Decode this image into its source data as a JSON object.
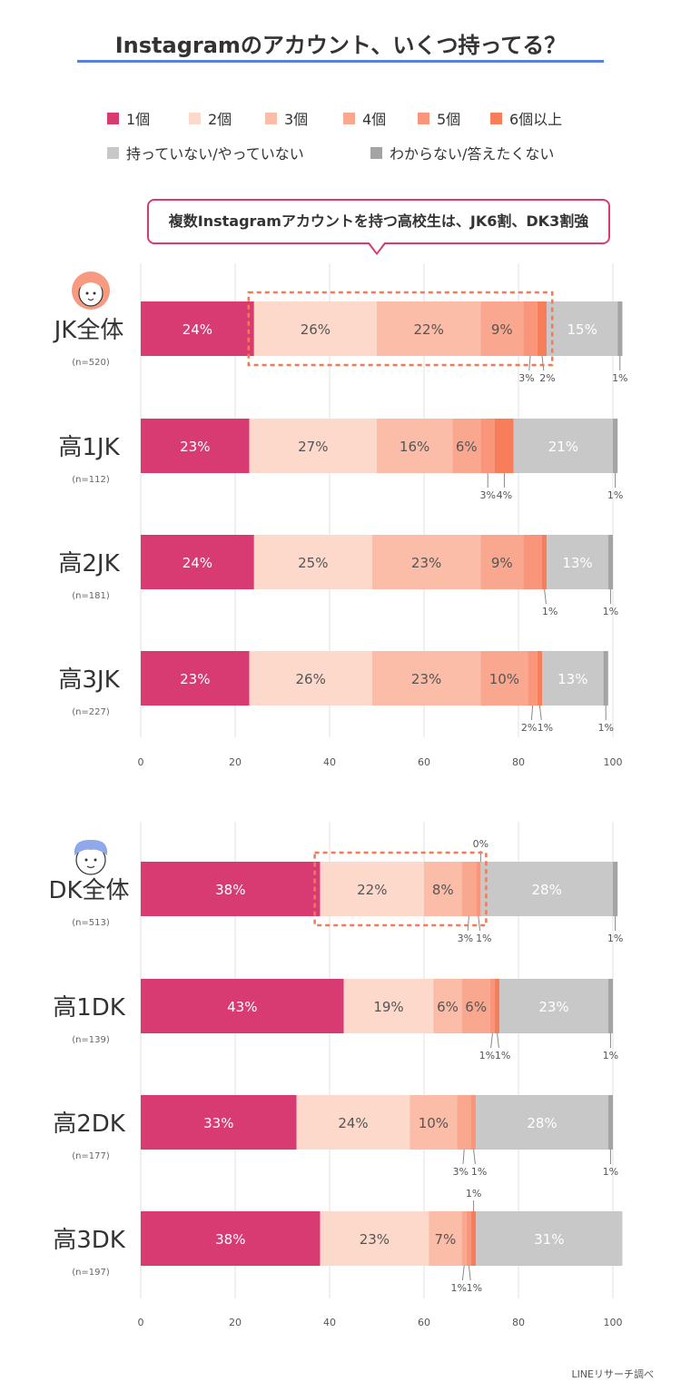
{
  "title": "Instagramのアカウント、いくつ持ってる？",
  "legend": [
    {
      "label": "1個",
      "color": "#d83b72"
    },
    {
      "label": "2個",
      "color": "#fdd9cc"
    },
    {
      "label": "3個",
      "color": "#fbbca8"
    },
    {
      "label": "4個",
      "color": "#f9a88f"
    },
    {
      "label": "5個",
      "color": "#f8957b"
    },
    {
      "label": "6個以上",
      "color": "#f77e5b"
    },
    {
      "label": "持っていない/やっていない",
      "color": "#c8c8c8"
    },
    {
      "label": "わからない/答えたくない",
      "color": "#a4a4a4"
    }
  ],
  "callout": "複数Instagramアカウントを持つ高校生は、JK6割、DK3割強",
  "source": "LINEリサーチ調べ",
  "chart_data": [
    {
      "type": "bar",
      "orientation": "horizontal",
      "stacked": true,
      "categories": [
        "JK全体",
        "高1JK",
        "高2JK",
        "高3JK"
      ],
      "sample_sizes": [
        "(n=520)",
        "(n=112)",
        "(n=181)",
        "(n=227)"
      ],
      "xlim": [
        0,
        100
      ],
      "xticks": [
        0,
        20,
        40,
        60,
        80,
        100
      ],
      "grid": true,
      "icon": "girl-face-icon",
      "series": [
        {
          "name": "1個",
          "values": [
            24,
            23,
            24,
            23
          ]
        },
        {
          "name": "2個",
          "values": [
            26,
            27,
            25,
            26
          ]
        },
        {
          "name": "3個",
          "values": [
            22,
            16,
            23,
            23
          ]
        },
        {
          "name": "4個",
          "values": [
            9,
            6,
            9,
            10
          ]
        },
        {
          "name": "5個",
          "values": [
            3,
            3,
            4,
            2
          ]
        },
        {
          "name": "6個以上",
          "values": [
            2,
            4,
            1,
            1
          ]
        },
        {
          "name": "持っていない/やっていない",
          "values": [
            15,
            21,
            13,
            13
          ]
        },
        {
          "name": "わからない/答えたくない",
          "values": [
            1,
            1,
            1,
            1
          ]
        }
      ]
    },
    {
      "type": "bar",
      "orientation": "horizontal",
      "stacked": true,
      "categories": [
        "DK全体",
        "高1DK",
        "高2DK",
        "高3DK"
      ],
      "sample_sizes": [
        "(n=513)",
        "(n=139)",
        "(n=177)",
        "(n=197)"
      ],
      "xlim": [
        0,
        100
      ],
      "xticks": [
        0,
        20,
        40,
        60,
        80,
        100
      ],
      "grid": true,
      "icon": "boy-face-icon",
      "series": [
        {
          "name": "1個",
          "values": [
            38,
            43,
            33,
            38
          ]
        },
        {
          "name": "2個",
          "values": [
            22,
            19,
            24,
            23
          ]
        },
        {
          "name": "3個",
          "values": [
            8,
            6,
            10,
            7
          ]
        },
        {
          "name": "4個",
          "values": [
            3,
            6,
            3,
            1
          ]
        },
        {
          "name": "5個",
          "values": [
            1,
            1,
            1,
            1
          ]
        },
        {
          "name": "6個以上",
          "values": [
            0,
            1,
            0,
            1
          ]
        },
        {
          "name": "持っていない/やっていない",
          "values": [
            28,
            23,
            28,
            31
          ]
        },
        {
          "name": "わからない/答えたくない",
          "values": [
            1,
            1,
            1,
            0
          ]
        }
      ]
    }
  ]
}
